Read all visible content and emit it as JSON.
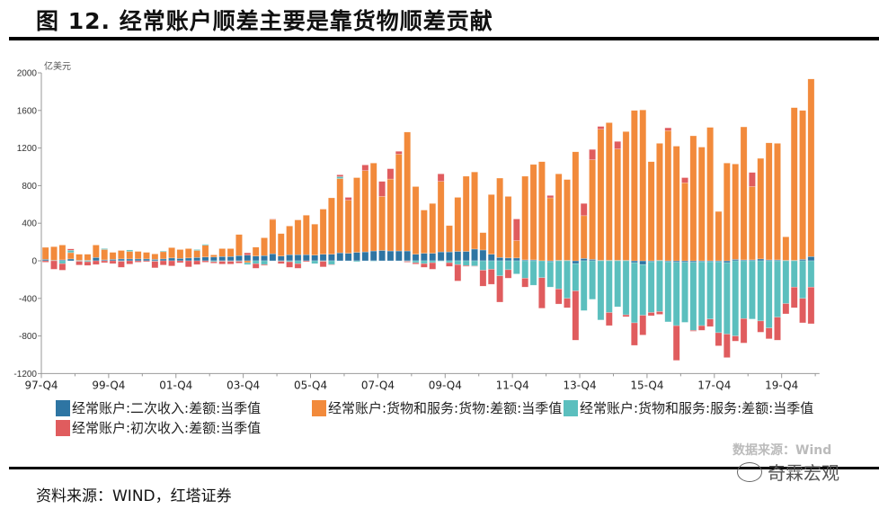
{
  "title": "图 12. 经常账户顺差主要是靠货物顺差贡献",
  "source": "资料来源：WIND，红塔证券",
  "watermark": "数据来源：Wind",
  "wechat_label": "奇霖宏观",
  "chart_data": {
    "type": "bar",
    "stacked": true,
    "ylabel": "亿美元",
    "ylim": [
      -1200,
      2000
    ],
    "yticks": [
      2000,
      1600,
      1200,
      800,
      400,
      0,
      -400,
      -800,
      -1200
    ],
    "grid": false,
    "legend_position": "bottom",
    "first_category": "97-Q4",
    "xtick_labels": [
      "97-Q4",
      "99-Q4",
      "01-Q4",
      "03-Q4",
      "05-Q4",
      "07-Q4",
      "09-Q4",
      "11-Q4",
      "13-Q4",
      "15-Q4",
      "17-Q4",
      "19-Q4"
    ],
    "series": [
      {
        "name": "经常账户:二次收入:差额:当季值",
        "color": "#2e75a3",
        "values": [
          15,
          5,
          10,
          20,
          5,
          5,
          35,
          10,
          15,
          20,
          20,
          20,
          20,
          15,
          20,
          30,
          25,
          30,
          35,
          40,
          40,
          45,
          45,
          55,
          60,
          50,
          55,
          75,
          50,
          65,
          65,
          65,
          60,
          70,
          70,
          85,
          80,
          90,
          95,
          105,
          110,
          105,
          105,
          105,
          70,
          80,
          80,
          95,
          95,
          100,
          100,
          125,
          115,
          70,
          35,
          30,
          30,
          10,
          10,
          0,
          -10,
          5,
          5,
          -30,
          25,
          15,
          5,
          5,
          5,
          5,
          -20,
          -40,
          -10,
          5,
          -10,
          -15,
          -15,
          -15,
          -10,
          -10,
          -10,
          -20,
          15,
          10,
          10,
          20,
          10,
          10,
          5,
          5,
          15,
          45
        ]
      },
      {
        "name": "经常账户:货物和服务:货物:差额:当季值",
        "color": "#f28a3b",
        "values": [
          128,
          145,
          158,
          67,
          65,
          65,
          133,
          110,
          75,
          90,
          80,
          80,
          70,
          58,
          77,
          110,
          95,
          100,
          75,
          125,
          23,
          85,
          85,
          225,
          -20,
          95,
          190,
          365,
          240,
          305,
          370,
          420,
          330,
          480,
          600,
          790,
          565,
          795,
          865,
          935,
          575,
          765,
          1030,
          1265,
          720,
          460,
          530,
          750,
          280,
          575,
          800,
          820,
          185,
          635,
          845,
          655,
          185,
          890,
          1015,
          1055,
          670,
          920,
          860,
          1160,
          455,
          1060,
          1395,
          1465,
          1185,
          1370,
          1600,
          1605,
          1055,
          1245,
          1385,
          1220,
          830,
          1330,
          1210,
          1420,
          525,
          1040,
          1015,
          1415,
          780,
          1070,
          1245,
          1240,
          250,
          1625,
          1585,
          1890
        ]
      },
      {
        "name": "经常账户:货物和服务:服务:差额:当季值",
        "color": "#5bbfbe",
        "values": [
          0,
          0,
          -30,
          25,
          -5,
          -10,
          0,
          10,
          0,
          -5,
          15,
          0,
          0,
          -5,
          8,
          0,
          0,
          0,
          10,
          10,
          -10,
          -5,
          -5,
          -5,
          -20,
          -30,
          -40,
          0,
          -5,
          -10,
          -30,
          0,
          -30,
          -5,
          -40,
          20,
          0,
          -10,
          0,
          -5,
          0,
          0,
          0,
          -5,
          -20,
          -30,
          -20,
          -5,
          -20,
          -40,
          -50,
          -55,
          -100,
          -90,
          -160,
          -95,
          -140,
          -185,
          -260,
          -180,
          -270,
          -300,
          -400,
          -290,
          -530,
          -410,
          -630,
          -550,
          -490,
          -575,
          -640,
          -540,
          -540,
          -540,
          -640,
          -675,
          -640,
          -725,
          -680,
          -610,
          -755,
          -760,
          -800,
          -615,
          -620,
          -640,
          -715,
          -600,
          -455,
          -280,
          -400,
          -280
        ]
      },
      {
        "name": "经常账户:初次收入:差额:当季值",
        "color": "#e05c5e",
        "values": [
          -15,
          -90,
          -70,
          15,
          -40,
          -40,
          -40,
          -20,
          -30,
          -65,
          -35,
          -15,
          -10,
          -70,
          -45,
          -55,
          -20,
          -65,
          -40,
          -15,
          -15,
          -30,
          -30,
          -20,
          25,
          -50,
          -10,
          5,
          -25,
          -60,
          -50,
          -10,
          0,
          -60,
          -5,
          20,
          30,
          0,
          60,
          0,
          160,
          110,
          30,
          -10,
          -15,
          -40,
          -70,
          80,
          -40,
          -175,
          -10,
          -5,
          -170,
          -160,
          -280,
          -90,
          230,
          -95,
          0,
          -325,
          25,
          -160,
          -100,
          -525,
          130,
          110,
          30,
          -140,
          80,
          -20,
          -240,
          -210,
          -35,
          -30,
          30,
          -370,
          55,
          -10,
          -50,
          -80,
          -140,
          -250,
          -55,
          -260,
          150,
          -120,
          -115,
          -245,
          -110,
          -220,
          -260,
          -390
        ]
      }
    ]
  }
}
